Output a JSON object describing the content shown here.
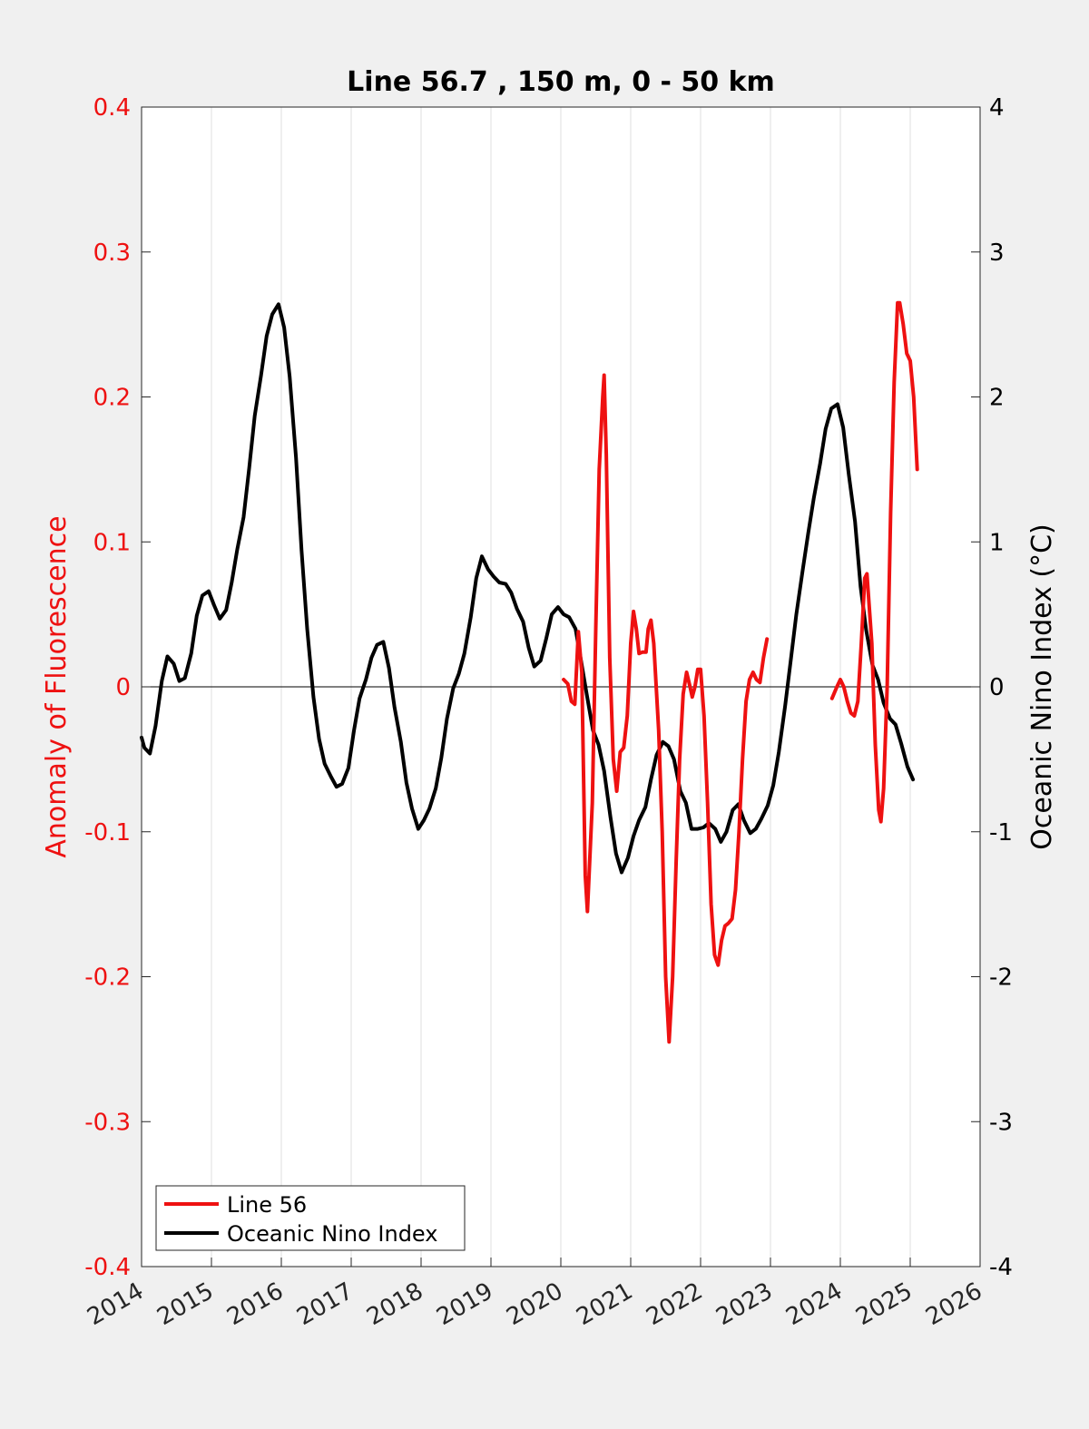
{
  "chart_data": {
    "type": "line",
    "title": "Line 56.7 , 150 m, 0 - 50 km",
    "xlabel": "",
    "ylabel_left": "Anomaly of Fluorescence",
    "ylabel_right": "Oceanic Nino Index (°C)",
    "xlim": [
      2014,
      2026
    ],
    "ylim_left": [
      -0.4,
      0.4
    ],
    "ylim_right": [
      -4,
      4
    ],
    "x_ticks": [
      2014,
      2015,
      2016,
      2017,
      2018,
      2019,
      2020,
      2021,
      2022,
      2023,
      2024,
      2025,
      2026
    ],
    "x_tick_labels": [
      "2014",
      "2015",
      "2016",
      "2017",
      "2018",
      "2019",
      "2020",
      "2021",
      "2022",
      "2023",
      "2024",
      "2025",
      "2026"
    ],
    "y_left_ticks": [
      -0.4,
      -0.3,
      -0.2,
      -0.1,
      0,
      0.1,
      0.2,
      0.3,
      0.4
    ],
    "y_left_tick_labels": [
      "-0.4",
      "-0.3",
      "-0.2",
      "-0.1",
      "0",
      "0.1",
      "0.2",
      "0.3",
      "0.4"
    ],
    "y_right_ticks": [
      -4,
      -3,
      -2,
      -1,
      0,
      1,
      2,
      3,
      4
    ],
    "y_right_tick_labels": [
      "-4",
      "-3",
      "-2",
      "-1",
      "0",
      "1",
      "2",
      "3",
      "4"
    ],
    "grid": "vertical",
    "zero_line": true,
    "legend_position": "bottom-left",
    "colors": {
      "line56": "#ee1111",
      "oni": "#000000",
      "left_axis": "#ee1111",
      "right_axis": "#000000"
    },
    "series": [
      {
        "name": "Line 56",
        "axis": "left",
        "segments": [
          [
            [
              2020.04,
              0.005
            ],
            [
              2020.1,
              0.002
            ],
            [
              2020.15,
              -0.01
            ],
            [
              2020.2,
              -0.012
            ],
            [
              2020.25,
              0.038
            ],
            [
              2020.3,
              0.01
            ],
            [
              2020.35,
              -0.13
            ],
            [
              2020.38,
              -0.155
            ],
            [
              2020.45,
              -0.08
            ],
            [
              2020.5,
              0.04
            ],
            [
              2020.55,
              0.15
            ],
            [
              2020.6,
              0.2
            ],
            [
              2020.62,
              0.215
            ],
            [
              2020.65,
              0.16
            ],
            [
              2020.7,
              0.02
            ],
            [
              2020.75,
              -0.05
            ],
            [
              2020.8,
              -0.072
            ],
            [
              2020.85,
              -0.045
            ],
            [
              2020.9,
              -0.042
            ],
            [
              2020.95,
              -0.02
            ],
            [
              2021.0,
              0.03
            ],
            [
              2021.04,
              0.052
            ],
            [
              2021.08,
              0.04
            ],
            [
              2021.12,
              0.023
            ],
            [
              2021.17,
              0.024
            ],
            [
              2021.22,
              0.024
            ],
            [
              2021.25,
              0.04
            ],
            [
              2021.29,
              0.046
            ],
            [
              2021.33,
              0.03
            ],
            [
              2021.4,
              -0.03
            ],
            [
              2021.45,
              -0.1
            ],
            [
              2021.5,
              -0.2
            ],
            [
              2021.55,
              -0.245
            ],
            [
              2021.6,
              -0.2
            ],
            [
              2021.65,
              -0.12
            ],
            [
              2021.7,
              -0.05
            ],
            [
              2021.75,
              -0.005
            ],
            [
              2021.8,
              0.01
            ],
            [
              2021.85,
              0.0
            ],
            [
              2021.88,
              -0.007
            ],
            [
              2021.92,
              0.0
            ],
            [
              2021.96,
              0.012
            ],
            [
              2022.0,
              0.012
            ],
            [
              2022.05,
              -0.02
            ],
            [
              2022.1,
              -0.08
            ],
            [
              2022.15,
              -0.15
            ],
            [
              2022.2,
              -0.185
            ],
            [
              2022.25,
              -0.192
            ],
            [
              2022.3,
              -0.175
            ],
            [
              2022.35,
              -0.165
            ],
            [
              2022.4,
              -0.163
            ],
            [
              2022.45,
              -0.16
            ],
            [
              2022.5,
              -0.14
            ],
            [
              2022.55,
              -0.1
            ],
            [
              2022.6,
              -0.05
            ],
            [
              2022.65,
              -0.01
            ],
            [
              2022.7,
              0.005
            ],
            [
              2022.75,
              0.01
            ],
            [
              2022.8,
              0.005
            ],
            [
              2022.85,
              0.003
            ],
            [
              2022.9,
              0.02
            ],
            [
              2022.95,
              0.033
            ]
          ],
          [
            [
              2023.88,
              -0.008
            ],
            [
              2023.95,
              0.0
            ],
            [
              2024.0,
              0.005
            ],
            [
              2024.05,
              0.0
            ],
            [
              2024.1,
              -0.01
            ],
            [
              2024.15,
              -0.018
            ],
            [
              2024.2,
              -0.02
            ],
            [
              2024.25,
              -0.01
            ],
            [
              2024.3,
              0.03
            ],
            [
              2024.35,
              0.075
            ],
            [
              2024.38,
              0.078
            ],
            [
              2024.45,
              0.03
            ],
            [
              2024.5,
              -0.04
            ],
            [
              2024.55,
              -0.085
            ],
            [
              2024.58,
              -0.093
            ],
            [
              2024.62,
              -0.07
            ],
            [
              2024.67,
              0.0
            ],
            [
              2024.72,
              0.12
            ],
            [
              2024.77,
              0.21
            ],
            [
              2024.82,
              0.265
            ],
            [
              2024.85,
              0.265
            ],
            [
              2024.9,
              0.25
            ],
            [
              2024.95,
              0.23
            ],
            [
              2025.0,
              0.225
            ],
            [
              2025.05,
              0.2
            ],
            [
              2025.1,
              0.15
            ]
          ]
        ]
      },
      {
        "name": "Oceanic Nino Index",
        "axis": "right",
        "points": [
          [
            2014.0,
            -0.35
          ],
          [
            2014.04,
            -0.42
          ],
          [
            2014.12,
            -0.46
          ],
          [
            2014.2,
            -0.27
          ],
          [
            2014.29,
            0.04
          ],
          [
            2014.37,
            0.21
          ],
          [
            2014.46,
            0.16
          ],
          [
            2014.54,
            0.04
          ],
          [
            2014.62,
            0.06
          ],
          [
            2014.71,
            0.23
          ],
          [
            2014.79,
            0.49
          ],
          [
            2014.87,
            0.63
          ],
          [
            2014.96,
            0.66
          ],
          [
            2015.04,
            0.56
          ],
          [
            2015.12,
            0.47
          ],
          [
            2015.21,
            0.53
          ],
          [
            2015.29,
            0.72
          ],
          [
            2015.37,
            0.95
          ],
          [
            2015.46,
            1.17
          ],
          [
            2015.54,
            1.51
          ],
          [
            2015.62,
            1.87
          ],
          [
            2015.71,
            2.15
          ],
          [
            2015.79,
            2.42
          ],
          [
            2015.87,
            2.57
          ],
          [
            2015.96,
            2.64
          ],
          [
            2016.04,
            2.48
          ],
          [
            2016.12,
            2.14
          ],
          [
            2016.21,
            1.58
          ],
          [
            2016.29,
            0.94
          ],
          [
            2016.37,
            0.4
          ],
          [
            2016.46,
            -0.07
          ],
          [
            2016.54,
            -0.36
          ],
          [
            2016.62,
            -0.53
          ],
          [
            2016.71,
            -0.62
          ],
          [
            2016.79,
            -0.69
          ],
          [
            2016.87,
            -0.67
          ],
          [
            2016.96,
            -0.56
          ],
          [
            2017.04,
            -0.3
          ],
          [
            2017.12,
            -0.08
          ],
          [
            2017.21,
            0.05
          ],
          [
            2017.29,
            0.2
          ],
          [
            2017.37,
            0.29
          ],
          [
            2017.46,
            0.31
          ],
          [
            2017.54,
            0.13
          ],
          [
            2017.62,
            -0.14
          ],
          [
            2017.71,
            -0.38
          ],
          [
            2017.79,
            -0.66
          ],
          [
            2017.87,
            -0.84
          ],
          [
            2017.96,
            -0.98
          ],
          [
            2018.04,
            -0.92
          ],
          [
            2018.12,
            -0.84
          ],
          [
            2018.21,
            -0.7
          ],
          [
            2018.29,
            -0.49
          ],
          [
            2018.37,
            -0.22
          ],
          [
            2018.46,
            -0.01
          ],
          [
            2018.54,
            0.09
          ],
          [
            2018.62,
            0.23
          ],
          [
            2018.71,
            0.48
          ],
          [
            2018.79,
            0.75
          ],
          [
            2018.87,
            0.9
          ],
          [
            2018.96,
            0.81
          ],
          [
            2019.04,
            0.76
          ],
          [
            2019.12,
            0.72
          ],
          [
            2019.21,
            0.71
          ],
          [
            2019.29,
            0.65
          ],
          [
            2019.37,
            0.54
          ],
          [
            2019.46,
            0.45
          ],
          [
            2019.54,
            0.27
          ],
          [
            2019.62,
            0.14
          ],
          [
            2019.71,
            0.18
          ],
          [
            2019.79,
            0.33
          ],
          [
            2019.87,
            0.5
          ],
          [
            2019.96,
            0.55
          ],
          [
            2020.04,
            0.5
          ],
          [
            2020.12,
            0.48
          ],
          [
            2020.21,
            0.4
          ],
          [
            2020.29,
            0.18
          ],
          [
            2020.37,
            -0.05
          ],
          [
            2020.46,
            -0.3
          ],
          [
            2020.54,
            -0.4
          ],
          [
            2020.62,
            -0.58
          ],
          [
            2020.71,
            -0.9
          ],
          [
            2020.79,
            -1.15
          ],
          [
            2020.87,
            -1.28
          ],
          [
            2020.96,
            -1.18
          ],
          [
            2021.04,
            -1.03
          ],
          [
            2021.12,
            -0.92
          ],
          [
            2021.21,
            -0.83
          ],
          [
            2021.29,
            -0.64
          ],
          [
            2021.37,
            -0.47
          ],
          [
            2021.46,
            -0.38
          ],
          [
            2021.54,
            -0.41
          ],
          [
            2021.62,
            -0.5
          ],
          [
            2021.71,
            -0.72
          ],
          [
            2021.79,
            -0.8
          ],
          [
            2021.87,
            -0.98
          ],
          [
            2021.96,
            -0.98
          ],
          [
            2022.04,
            -0.97
          ],
          [
            2022.12,
            -0.94
          ],
          [
            2022.21,
            -0.98
          ],
          [
            2022.29,
            -1.07
          ],
          [
            2022.37,
            -1.0
          ],
          [
            2022.46,
            -0.85
          ],
          [
            2022.54,
            -0.81
          ],
          [
            2022.62,
            -0.92
          ],
          [
            2022.71,
            -1.01
          ],
          [
            2022.79,
            -0.98
          ],
          [
            2022.87,
            -0.91
          ],
          [
            2022.96,
            -0.82
          ],
          [
            2023.04,
            -0.68
          ],
          [
            2023.12,
            -0.45
          ],
          [
            2023.21,
            -0.13
          ],
          [
            2023.29,
            0.18
          ],
          [
            2023.37,
            0.5
          ],
          [
            2023.46,
            0.8
          ],
          [
            2023.54,
            1.06
          ],
          [
            2023.62,
            1.3
          ],
          [
            2023.71,
            1.54
          ],
          [
            2023.79,
            1.78
          ],
          [
            2023.87,
            1.92
          ],
          [
            2023.96,
            1.95
          ],
          [
            2024.04,
            1.79
          ],
          [
            2024.12,
            1.47
          ],
          [
            2024.21,
            1.14
          ],
          [
            2024.29,
            0.69
          ],
          [
            2024.37,
            0.39
          ],
          [
            2024.46,
            0.15
          ],
          [
            2024.54,
            0.05
          ],
          [
            2024.62,
            -0.11
          ],
          [
            2024.71,
            -0.22
          ],
          [
            2024.79,
            -0.26
          ],
          [
            2024.87,
            -0.39
          ],
          [
            2024.96,
            -0.55
          ],
          [
            2025.04,
            -0.64
          ]
        ]
      }
    ]
  }
}
